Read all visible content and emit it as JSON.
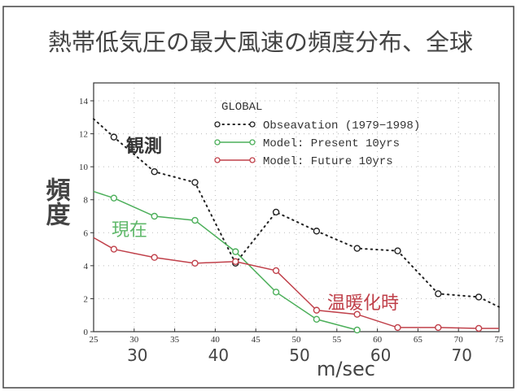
{
  "title": "熱帯低気圧の最大風速の頻度分布、全球",
  "chart_data": {
    "type": "line",
    "title": "熱帯低気圧の最大風速の頻度分布、全球",
    "plot_label": "GLOBAL",
    "ylabel": "頻度",
    "xlabel": "m/sec",
    "xlim": [
      25,
      75
    ],
    "ylim": [
      0,
      14
    ],
    "x_ticks": [
      25,
      30,
      35,
      40,
      45,
      50,
      55,
      60,
      65,
      70,
      75
    ],
    "y_ticks": [
      0,
      2,
      4,
      6,
      8,
      10,
      12,
      14
    ],
    "x_big_labels": [
      "30",
      "40",
      "50",
      "60",
      "70"
    ],
    "grid": true,
    "legend_position": "top-right",
    "series": [
      {
        "name": "Obseavation (1979−1998)",
        "color": "#222222",
        "style": "dotted",
        "annotation": "観測",
        "x": [
          25,
          27.5,
          32.5,
          37.5,
          42.5,
          47.5,
          52.5,
          57.5,
          62.5,
          67.5,
          72.5,
          75
        ],
        "y": [
          12.9,
          11.8,
          9.7,
          9.05,
          4.15,
          7.25,
          6.1,
          5.05,
          4.9,
          2.3,
          2.1,
          1.5
        ],
        "markers": [
          false,
          true,
          true,
          true,
          true,
          true,
          true,
          true,
          true,
          true,
          true,
          false
        ]
      },
      {
        "name": "Model: Present  10yrs",
        "color": "#4caf5a",
        "style": "solid",
        "annotation": "現在",
        "x": [
          25,
          27.5,
          32.5,
          37.5,
          42.5,
          47.5,
          52.5,
          57.5
        ],
        "y": [
          8.5,
          8.1,
          7.0,
          6.75,
          4.85,
          2.4,
          0.75,
          0.1
        ],
        "markers": [
          false,
          true,
          true,
          true,
          true,
          true,
          true,
          true
        ]
      },
      {
        "name": "Model: Future   10yrs",
        "color": "#c0404a",
        "style": "solid",
        "annotation": "温暖化時",
        "x": [
          25,
          27.5,
          32.5,
          37.5,
          42.5,
          47.5,
          52.5,
          57.5,
          62.5,
          67.5,
          72.5,
          75
        ],
        "y": [
          5.7,
          5.0,
          4.5,
          4.15,
          4.25,
          3.7,
          1.3,
          1.05,
          0.25,
          0.25,
          0.2,
          0.2
        ],
        "markers": [
          false,
          true,
          true,
          true,
          true,
          true,
          true,
          true,
          true,
          true,
          true,
          false
        ]
      }
    ]
  }
}
